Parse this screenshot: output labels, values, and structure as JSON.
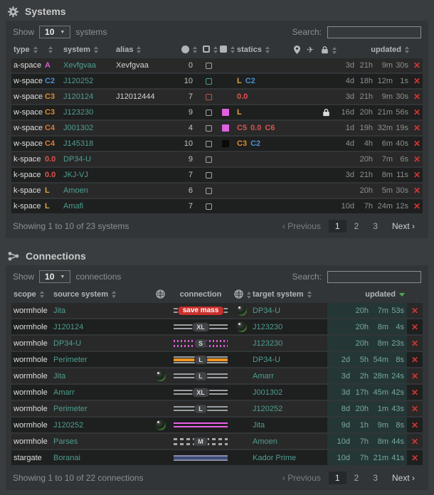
{
  "shared": {
    "delete_glyph": "✕",
    "prev_glyph": "‹",
    "next_glyph": "›",
    "colors": {
      "link_teal": "#4e9e90",
      "delete_red": "#d23732",
      "sorted_cell_bg": "#243736",
      "magenta": "#e060e0",
      "eol_orange": "#ef9421",
      "stargate_blue": "#3d4b77",
      "sort_active_green": "#4cae4c",
      "danger_badge": "#c9302c"
    }
  },
  "systems": {
    "title": "Systems",
    "icon": "gear-icon",
    "toolbar": {
      "show": "Show",
      "page_size": "10",
      "suffix": "systems",
      "search": "Search:",
      "search_value": ""
    },
    "columns": {
      "type": "type",
      "system": "system",
      "alias": "alias",
      "statics": "statics",
      "updated": "updated",
      "icon_columns": [
        "circle-icon",
        "square-outline-icon",
        "square-filled-icon",
        "map-pin-icon",
        "plane-icon",
        "lock-icon"
      ]
    },
    "rows": [
      {
        "type": "a-space",
        "sec": "A",
        "sec_color": "#cf5fd1",
        "system": "Xevfgvaa",
        "alias": "Xevfgvaa",
        "count": "0",
        "box": "grey",
        "fill": "",
        "statics": [],
        "lock": false,
        "updated": [
          "3d",
          "21h",
          "9m",
          "30s"
        ]
      },
      {
        "type": "w-space",
        "sec": "C2",
        "sec_color": "#4a8fd0",
        "system": "J120252",
        "alias": "",
        "count": "10",
        "box": "teal",
        "fill": "",
        "statics": [
          {
            "t": "L",
            "c": "#e0a33e"
          },
          {
            "t": "C2",
            "c": "#4a8fd0"
          }
        ],
        "lock": false,
        "updated": [
          "4d",
          "18h",
          "12m",
          "1s"
        ]
      },
      {
        "type": "w-space",
        "sec": "C3",
        "sec_color": "#dd8a2e",
        "system": "J120124",
        "alias": "J12012444",
        "count": "7",
        "box": "red",
        "fill": "",
        "statics": [
          {
            "t": "0.0",
            "c": "#d9534f"
          }
        ],
        "lock": false,
        "updated": [
          "3d",
          "21h",
          "9m",
          "30s"
        ]
      },
      {
        "type": "w-space",
        "sec": "C3",
        "sec_color": "#dd8a2e",
        "system": "J123230",
        "alias": "",
        "count": "9",
        "box": "grey",
        "fill": "#e060e0",
        "statics": [
          {
            "t": "L",
            "c": "#e0a33e"
          }
        ],
        "lock": true,
        "updated": [
          "16d",
          "20h",
          "21m",
          "56s"
        ]
      },
      {
        "type": "w-space",
        "sec": "C4",
        "sec_color": "#dd7a2e",
        "system": "J001302",
        "alias": "",
        "count": "4",
        "box": "grey",
        "fill": "#e060e0",
        "statics": [
          {
            "t": "C5",
            "c": "#d9534f"
          },
          {
            "t": "0.0",
            "c": "#d9534f"
          },
          {
            "t": "C6",
            "c": "#d9534f"
          }
        ],
        "lock": false,
        "updated": [
          "1d",
          "19h",
          "32m",
          "19s"
        ]
      },
      {
        "type": "w-space",
        "sec": "C4",
        "sec_color": "#dd7a2e",
        "system": "J145318",
        "alias": "",
        "count": "10",
        "box": "grey",
        "fill": "#0a0a0a",
        "statics": [
          {
            "t": "C3",
            "c": "#dd8a2e"
          },
          {
            "t": "C2",
            "c": "#4a8fd0"
          }
        ],
        "lock": false,
        "updated": [
          "4d",
          "4h",
          "6m",
          "40s"
        ]
      },
      {
        "type": "k-space",
        "sec": "0.0",
        "sec_color": "#d9534f",
        "system": "DP34-U",
        "alias": "",
        "count": "9",
        "box": "grey",
        "fill": "",
        "statics": [],
        "lock": false,
        "updated": [
          "",
          "20h",
          "7m",
          "6s"
        ]
      },
      {
        "type": "k-space",
        "sec": "0.0",
        "sec_color": "#d9534f",
        "system": "JKJ-VJ",
        "alias": "",
        "count": "7",
        "box": "grey",
        "fill": "",
        "statics": [],
        "lock": false,
        "updated": [
          "3d",
          "21h",
          "8m",
          "11s"
        ]
      },
      {
        "type": "k-space",
        "sec": "L",
        "sec_color": "#e0a33e",
        "system": "Amoen",
        "alias": "",
        "count": "6",
        "box": "grey",
        "fill": "",
        "statics": [],
        "lock": false,
        "updated": [
          "",
          "20h",
          "5m",
          "30s"
        ]
      },
      {
        "type": "k-space",
        "sec": "L",
        "sec_color": "#e0a33e",
        "system": "Amafi",
        "alias": "",
        "count": "7",
        "box": "grey",
        "fill": "",
        "statics": [],
        "lock": false,
        "updated": [
          "10d",
          "7h",
          "24m",
          "12s"
        ]
      }
    ],
    "footer": {
      "info": "Showing 1 to 10 of 23 systems",
      "previous": "Previous",
      "pages": [
        "1",
        "2",
        "3"
      ],
      "active": "1",
      "next": "Next"
    }
  },
  "connections": {
    "title": "Connections",
    "icon": "share-nodes-icon",
    "toolbar": {
      "show": "Show",
      "page_size": "10",
      "suffix": "connections",
      "search": "Search:",
      "search_value": ""
    },
    "columns": {
      "scope": "scope",
      "source": "source system",
      "connection": "connection",
      "target": "target system",
      "updated": "updated",
      "icon_columns": [
        "globe-icon",
        "globe-icon"
      ],
      "sorted_by": "updated",
      "sort_direction": "desc"
    },
    "rows": [
      {
        "scope": "wormhole",
        "source": "Jita",
        "src_orb": false,
        "tgt_orb": true,
        "style": "double-grey",
        "badge": "save mass",
        "badge_variant": "danger",
        "target": "DP34-U",
        "updated": [
          "",
          "20h",
          "7m",
          "53s"
        ]
      },
      {
        "scope": "wormhole",
        "source": "J120124",
        "src_orb": false,
        "tgt_orb": true,
        "style": "double-grey",
        "badge": "XL",
        "badge_variant": "default",
        "target": "J123230",
        "updated": [
          "",
          "20h",
          "8m",
          "4s"
        ]
      },
      {
        "scope": "wormhole",
        "source": "DP34-U",
        "src_orb": false,
        "tgt_orb": false,
        "style": "dotted-magenta",
        "badge": "S",
        "badge_variant": "default",
        "target": "J123230",
        "updated": [
          "",
          "20h",
          "8m",
          "23s"
        ]
      },
      {
        "scope": "wormhole",
        "source": "Perimeter",
        "src_orb": false,
        "tgt_orb": false,
        "style": "orange-core",
        "badge": "L",
        "badge_variant": "default",
        "target": "DP34-U",
        "updated": [
          "2d",
          "5h",
          "54m",
          "8s"
        ]
      },
      {
        "scope": "wormhole",
        "source": "Jita",
        "src_orb": true,
        "tgt_orb": false,
        "style": "double-grey",
        "badge": "L",
        "badge_variant": "default",
        "target": "Amarr",
        "updated": [
          "3d",
          "2h",
          "28m",
          "24s"
        ]
      },
      {
        "scope": "wormhole",
        "source": "Amarr",
        "src_orb": false,
        "tgt_orb": false,
        "style": "double-grey",
        "badge": "XL",
        "badge_variant": "default",
        "target": "J001302",
        "updated": [
          "3d",
          "17h",
          "45m",
          "42s"
        ]
      },
      {
        "scope": "wormhole",
        "source": "Perimeter",
        "src_orb": false,
        "tgt_orb": false,
        "style": "double-grey",
        "badge": "L",
        "badge_variant": "default",
        "target": "J120252",
        "updated": [
          "8d",
          "20h",
          "1m",
          "43s"
        ]
      },
      {
        "scope": "wormhole",
        "source": "J120252",
        "src_orb": true,
        "tgt_orb": false,
        "style": "double-magenta",
        "badge": "",
        "badge_variant": "default",
        "target": "Jita",
        "updated": [
          "9d",
          "1h",
          "9m",
          "8s"
        ]
      },
      {
        "scope": "wormhole",
        "source": "Parses",
        "src_orb": false,
        "tgt_orb": false,
        "style": "dashed-grey",
        "badge": "M",
        "badge_variant": "default",
        "target": "Amoen",
        "updated": [
          "10d",
          "7h",
          "8m",
          "44s"
        ]
      },
      {
        "scope": "stargate",
        "source": "Boranai",
        "src_orb": false,
        "tgt_orb": false,
        "style": "stargate-bar",
        "badge": "",
        "badge_variant": "default",
        "target": "Kador Prime",
        "updated": [
          "10d",
          "7h",
          "21m",
          "41s"
        ]
      }
    ],
    "footer": {
      "info": "Showing 1 to 10 of 22 connections",
      "previous": "Previous",
      "pages": [
        "1",
        "2",
        "3"
      ],
      "active": "1",
      "next": "Next"
    }
  }
}
